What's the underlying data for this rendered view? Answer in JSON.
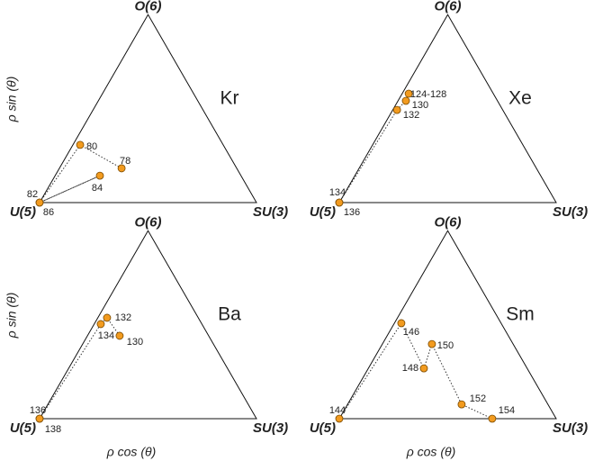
{
  "chart_data": [
    {
      "type": "scatter",
      "title": "Kr",
      "vertices": [
        "U(5)",
        "SU(3)",
        "O(6)"
      ],
      "ylabel": "ρ sin (θ)",
      "x": [
        0.378,
        0.187,
        0,
        0.278,
        0
      ],
      "y": [
        0.158,
        0.266,
        0,
        0.124,
        0
      ],
      "labels": [
        "78",
        "80",
        "82",
        "84",
        "86"
      ],
      "xlim": [
        0,
        1
      ],
      "ylim": [
        0,
        0.866
      ],
      "color": "#f29b1f"
    },
    {
      "type": "scatter",
      "title": "Xe",
      "vertices": [
        "U(5)",
        "SU(3)",
        "O(6)"
      ],
      "x": [
        0.32,
        0.307,
        0.266,
        0,
        0
      ],
      "y": [
        0.502,
        0.469,
        0.427,
        0,
        0
      ],
      "labels": [
        "124-128",
        "130",
        "132",
        "134",
        "136"
      ],
      "xlim": [
        0,
        1
      ],
      "ylim": [
        0,
        0.866
      ],
      "color": "#f29b1f"
    },
    {
      "type": "scatter",
      "title": "Ba",
      "vertices": [
        "U(5)",
        "SU(3)",
        "O(6)"
      ],
      "ylabel": "ρ sin (θ)",
      "xlabel": "ρ cos (θ)",
      "x": [
        0.369,
        0.311,
        0.282,
        0,
        0
      ],
      "y": [
        0.382,
        0.465,
        0.436,
        0,
        0
      ],
      "labels": [
        "130",
        "132",
        "134",
        "136",
        "138"
      ],
      "xlim": [
        0,
        1
      ],
      "ylim": [
        0,
        0.866
      ],
      "color": "#f29b1f"
    },
    {
      "type": "scatter",
      "title": "Sm",
      "vertices": [
        "U(5)",
        "SU(3)",
        "O(6)"
      ],
      "xlabel": "ρ cos (θ)",
      "x": [
        0,
        0.286,
        0.39,
        0.427,
        0.564,
        0.705
      ],
      "y": [
        0,
        0.44,
        0.232,
        0.344,
        0.066,
        0
      ],
      "labels": [
        "144",
        "146",
        "148",
        "150",
        "152",
        "154"
      ],
      "xlim": [
        0,
        1
      ],
      "ylim": [
        0,
        0.866
      ],
      "color": "#f29b1f"
    }
  ]
}
